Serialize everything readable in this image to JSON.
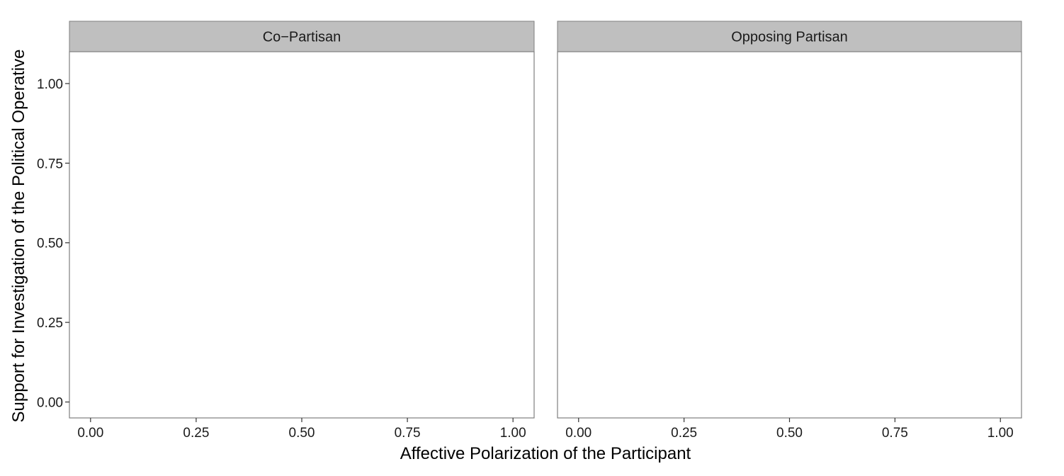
{
  "chart_data": {
    "type": "scatter",
    "xlabel": "Affective Polarization of the Participant",
    "ylabel": "Support for Investigation of the Political Operative",
    "xlim": [
      -0.05,
      1.05
    ],
    "ylim": [
      -0.05,
      1.1
    ],
    "x_ticks": [
      "0.00",
      "0.25",
      "0.50",
      "0.75",
      "1.00"
    ],
    "y_ticks": [
      "0.00",
      "0.25",
      "0.50",
      "0.75",
      "1.00"
    ],
    "grid": false,
    "facets": [
      {
        "label": "Co−Partisan",
        "series": []
      },
      {
        "label": "Opposing Partisan",
        "series": []
      }
    ],
    "colors": {
      "strip_fill": "#bfbfbf",
      "panel_border": "#7f7f7f",
      "tick": "#333333"
    }
  }
}
